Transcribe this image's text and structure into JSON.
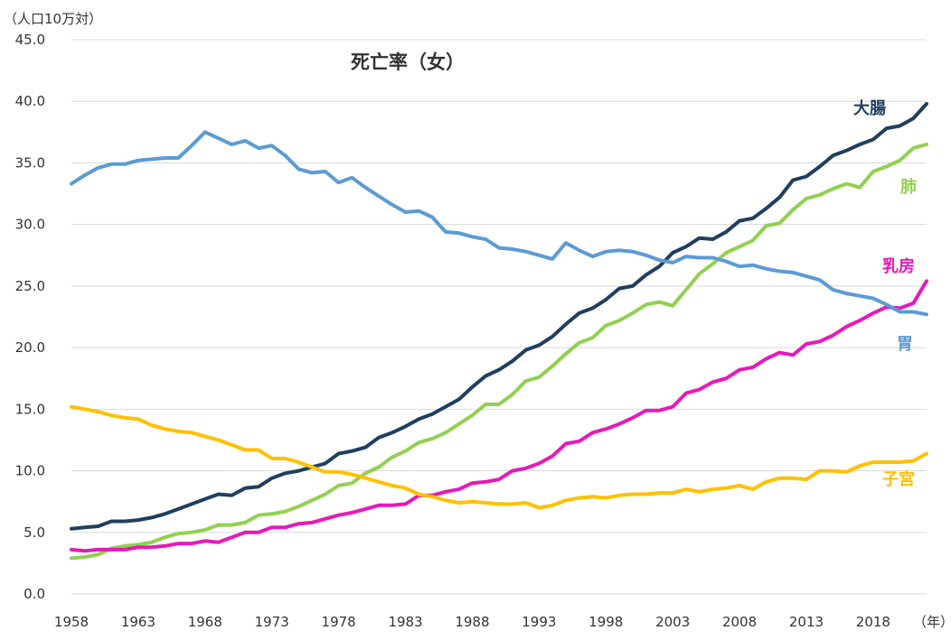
{
  "chart_data": {
    "type": "line",
    "title": "死亡率（女）",
    "ylabel": "（人口10万対）",
    "xlabel": "（年）",
    "ylim": [
      0,
      45
    ],
    "xlim": [
      1958,
      2022
    ],
    "grid": true,
    "y_ticks": [
      "0.0",
      "5.0",
      "10.0",
      "15.0",
      "20.0",
      "25.0",
      "30.0",
      "35.0",
      "40.0",
      "45.0"
    ],
    "x_ticks": [
      "1958",
      "1963",
      "1968",
      "1973",
      "1978",
      "1983",
      "1988",
      "1993",
      "1998",
      "2003",
      "2008",
      "2013",
      "2018"
    ],
    "x": [
      1958,
      1959,
      1960,
      1961,
      1962,
      1963,
      1964,
      1965,
      1966,
      1967,
      1968,
      1969,
      1970,
      1971,
      1972,
      1973,
      1974,
      1975,
      1976,
      1977,
      1978,
      1979,
      1980,
      1981,
      1982,
      1983,
      1984,
      1985,
      1986,
      1987,
      1988,
      1989,
      1990,
      1991,
      1992,
      1993,
      1994,
      1995,
      1996,
      1997,
      1998,
      1999,
      2000,
      2001,
      2002,
      2003,
      2004,
      2005,
      2006,
      2007,
      2008,
      2009,
      2010,
      2011,
      2012,
      2013,
      2014,
      2015,
      2016,
      2017,
      2018,
      2019,
      2020,
      2021,
      2022
    ],
    "series": [
      {
        "name": "大腸",
        "color": "#1f3e60",
        "values": [
          5.3,
          5.4,
          5.5,
          5.9,
          5.9,
          6.0,
          6.2,
          6.5,
          6.9,
          7.3,
          7.7,
          8.1,
          8.0,
          8.6,
          8.7,
          9.4,
          9.8,
          10.0,
          10.3,
          10.6,
          11.4,
          11.6,
          11.9,
          12.7,
          13.1,
          13.6,
          14.2,
          14.6,
          15.2,
          15.8,
          16.8,
          17.7,
          18.2,
          18.9,
          19.8,
          20.2,
          20.9,
          21.9,
          22.8,
          23.2,
          23.9,
          24.8,
          25.0,
          25.9,
          26.6,
          27.7,
          28.2,
          28.9,
          28.8,
          29.4,
          30.3,
          30.5,
          31.3,
          32.2,
          33.6,
          33.9,
          34.7,
          35.6,
          36.0,
          36.5,
          36.9,
          37.8,
          38.0,
          38.6,
          39.8
        ]
      },
      {
        "name": "肺",
        "color": "#92d050",
        "values": [
          2.9,
          3.0,
          3.2,
          3.7,
          3.9,
          4.0,
          4.2,
          4.6,
          4.9,
          5.0,
          5.2,
          5.6,
          5.6,
          5.8,
          6.4,
          6.5,
          6.7,
          7.1,
          7.6,
          8.1,
          8.8,
          9.0,
          9.8,
          10.3,
          11.1,
          11.6,
          12.3,
          12.6,
          13.1,
          13.8,
          14.5,
          15.4,
          15.4,
          16.2,
          17.3,
          17.6,
          18.5,
          19.5,
          20.4,
          20.8,
          21.8,
          22.2,
          22.8,
          23.5,
          23.7,
          23.4,
          24.7,
          26.0,
          26.8,
          27.7,
          28.2,
          28.7,
          29.9,
          30.1,
          31.2,
          32.1,
          32.4,
          32.9,
          33.3,
          33.0,
          34.3,
          34.7,
          35.2,
          36.2,
          36.5
        ]
      },
      {
        "name": "乳房",
        "color": "#e619b9",
        "values": [
          3.6,
          3.5,
          3.6,
          3.6,
          3.6,
          3.8,
          3.8,
          3.9,
          4.1,
          4.1,
          4.3,
          4.2,
          4.6,
          5.0,
          5.0,
          5.4,
          5.4,
          5.7,
          5.8,
          6.1,
          6.4,
          6.6,
          6.9,
          7.2,
          7.2,
          7.3,
          8.0,
          8.0,
          8.3,
          8.5,
          9.0,
          9.1,
          9.3,
          10.0,
          10.2,
          10.6,
          11.2,
          12.2,
          12.4,
          13.1,
          13.4,
          13.8,
          14.3,
          14.9,
          14.9,
          15.2,
          16.3,
          16.6,
          17.2,
          17.5,
          18.2,
          18.4,
          19.1,
          19.6,
          19.4,
          20.3,
          20.5,
          21.0,
          21.7,
          22.2,
          22.8,
          23.3,
          23.2,
          23.6,
          25.4
        ]
      },
      {
        "name": "胃",
        "color": "#5b9bd5",
        "values": [
          33.3,
          34.0,
          34.6,
          34.9,
          34.9,
          35.2,
          35.3,
          35.4,
          35.4,
          36.4,
          37.5,
          37.0,
          36.5,
          36.8,
          36.2,
          36.4,
          35.6,
          34.5,
          34.2,
          34.3,
          33.4,
          33.8,
          33.0,
          32.3,
          31.6,
          31.0,
          31.1,
          30.6,
          29.4,
          29.3,
          29.0,
          28.8,
          28.1,
          28.0,
          27.8,
          27.5,
          27.2,
          28.5,
          27.9,
          27.4,
          27.8,
          27.9,
          27.8,
          27.5,
          27.1,
          26.9,
          27.4,
          27.3,
          27.3,
          27.0,
          26.6,
          26.7,
          26.4,
          26.2,
          26.1,
          25.8,
          25.5,
          24.7,
          24.4,
          24.2,
          24.0,
          23.5,
          22.9,
          22.9,
          22.7
        ]
      },
      {
        "name": "子宮",
        "color": "#ffc000",
        "values": [
          15.2,
          15.0,
          14.8,
          14.5,
          14.3,
          14.2,
          13.7,
          13.4,
          13.2,
          13.1,
          12.8,
          12.5,
          12.1,
          11.7,
          11.7,
          11.0,
          11.0,
          10.7,
          10.3,
          9.9,
          9.9,
          9.7,
          9.4,
          9.1,
          8.8,
          8.6,
          8.1,
          7.9,
          7.6,
          7.4,
          7.5,
          7.4,
          7.3,
          7.3,
          7.4,
          7.0,
          7.2,
          7.6,
          7.8,
          7.9,
          7.8,
          8.0,
          8.1,
          8.1,
          8.2,
          8.2,
          8.5,
          8.3,
          8.5,
          8.6,
          8.8,
          8.5,
          9.1,
          9.4,
          9.4,
          9.3,
          10.0,
          10.0,
          9.9,
          10.4,
          10.7,
          10.7,
          10.7,
          10.8,
          11.4
        ]
      }
    ]
  }
}
